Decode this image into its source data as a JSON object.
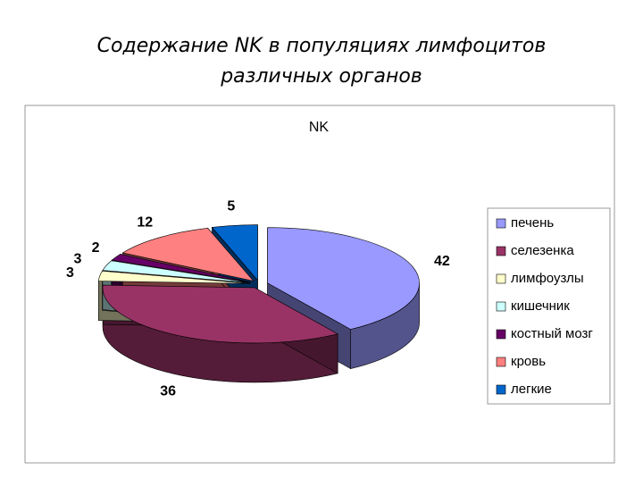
{
  "slide_title": [
    "Содержание NK в популяциях лимфоцитов",
    "различных органов"
  ],
  "chart_data": {
    "type": "pie3d",
    "title": "NK",
    "categories": [
      "печень",
      "селезенка",
      "лимфоузлы",
      "кишечник",
      "костный мозг",
      "кровь",
      "легкие"
    ],
    "values": [
      42,
      36,
      3,
      3,
      2,
      12,
      5
    ],
    "colors": [
      "#9999ff",
      "#993366",
      "#ffffcc",
      "#ccffff",
      "#660066",
      "#ff8080",
      "#0066cc"
    ],
    "legend": "right"
  }
}
